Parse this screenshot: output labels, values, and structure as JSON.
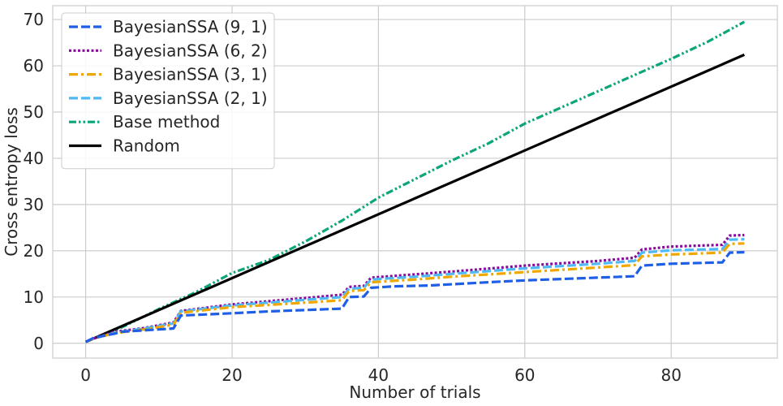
{
  "chart_data": {
    "type": "line",
    "xlabel": "Number of trials",
    "ylabel": "Cross entropy loss",
    "xlim": [
      -4.5,
      94.5
    ],
    "ylim": [
      -3.2,
      73
    ],
    "xticks": [
      0,
      20,
      40,
      60,
      80
    ],
    "yticks": [
      0,
      10,
      20,
      30,
      40,
      50,
      60,
      70
    ],
    "xtick_labels": [
      "0",
      "20",
      "40",
      "60",
      "80"
    ],
    "ytick_labels": [
      "0",
      "10",
      "20",
      "30",
      "40",
      "50",
      "60",
      "70"
    ],
    "grid": true,
    "legend_position": "upper-left",
    "series": [
      {
        "name": "BayesianSSA (9, 1)",
        "color": "#1f5fe6",
        "dash": "dashed",
        "points": [
          [
            0,
            0.3
          ],
          [
            1,
            1.1
          ],
          [
            3,
            1.8
          ],
          [
            4,
            2.1
          ],
          [
            5,
            2.5
          ],
          [
            8,
            2.8
          ],
          [
            10,
            3.0
          ],
          [
            12,
            3.2
          ],
          [
            13,
            6.0
          ],
          [
            20,
            6.5
          ],
          [
            25,
            6.9
          ],
          [
            30,
            7.2
          ],
          [
            35,
            7.5
          ],
          [
            36,
            10.0
          ],
          [
            38,
            10.1
          ],
          [
            39,
            12.0
          ],
          [
            42,
            12.3
          ],
          [
            47,
            12.5
          ],
          [
            55,
            13.2
          ],
          [
            60,
            13.6
          ],
          [
            65,
            13.9
          ],
          [
            70,
            14.2
          ],
          [
            75,
            14.5
          ],
          [
            76,
            16.8
          ],
          [
            80,
            17.2
          ],
          [
            87,
            17.5
          ],
          [
            88,
            19.6
          ],
          [
            90,
            19.7
          ]
        ]
      },
      {
        "name": "BayesianSSA (6, 2)",
        "color": "#8b0a9e",
        "dash": "dotted",
        "points": [
          [
            0,
            0.3
          ],
          [
            1,
            1.0
          ],
          [
            4,
            2.5
          ],
          [
            8,
            3.3
          ],
          [
            12,
            4.5
          ],
          [
            13,
            7.0
          ],
          [
            20,
            8.4
          ],
          [
            30,
            9.8
          ],
          [
            35,
            10.5
          ],
          [
            36,
            12.2
          ],
          [
            38,
            12.4
          ],
          [
            39,
            14.2
          ],
          [
            45,
            14.9
          ],
          [
            50,
            15.5
          ],
          [
            60,
            16.8
          ],
          [
            70,
            17.8
          ],
          [
            75,
            18.5
          ],
          [
            76,
            20.3
          ],
          [
            80,
            20.9
          ],
          [
            87,
            21.3
          ],
          [
            88,
            23.3
          ],
          [
            90,
            23.4
          ]
        ]
      },
      {
        "name": "BayesianSSA (3, 1)",
        "color": "#f0a800",
        "dash": "dashdot",
        "points": [
          [
            0,
            0.3
          ],
          [
            1,
            1.0
          ],
          [
            4,
            2.2
          ],
          [
            8,
            3.0
          ],
          [
            12,
            4.0
          ],
          [
            13,
            6.6
          ],
          [
            20,
            7.8
          ],
          [
            30,
            8.8
          ],
          [
            35,
            9.3
          ],
          [
            36,
            11.3
          ],
          [
            38,
            11.5
          ],
          [
            39,
            13.2
          ],
          [
            45,
            13.8
          ],
          [
            50,
            14.4
          ],
          [
            60,
            15.4
          ],
          [
            70,
            16.4
          ],
          [
            75,
            16.9
          ],
          [
            76,
            18.8
          ],
          [
            80,
            19.2
          ],
          [
            87,
            19.6
          ],
          [
            88,
            21.5
          ],
          [
            90,
            21.6
          ]
        ]
      },
      {
        "name": "BayesianSSA (2, 1)",
        "color": "#4fb9f5",
        "dash": "dashed",
        "points": [
          [
            0,
            0.3
          ],
          [
            1,
            1.0
          ],
          [
            4,
            2.3
          ],
          [
            8,
            3.2
          ],
          [
            12,
            4.3
          ],
          [
            13,
            6.9
          ],
          [
            20,
            8.2
          ],
          [
            30,
            9.4
          ],
          [
            35,
            10.0
          ],
          [
            36,
            11.8
          ],
          [
            38,
            12.0
          ],
          [
            39,
            13.8
          ],
          [
            45,
            14.4
          ],
          [
            50,
            15.0
          ],
          [
            60,
            16.2
          ],
          [
            70,
            17.2
          ],
          [
            75,
            17.8
          ],
          [
            76,
            19.6
          ],
          [
            80,
            20.1
          ],
          [
            87,
            20.4
          ],
          [
            88,
            22.4
          ],
          [
            90,
            22.5
          ]
        ]
      },
      {
        "name": "Base method",
        "color": "#0aa67a",
        "dash": "dashdotdot",
        "points": [
          [
            0,
            0.3
          ],
          [
            5,
            3.5
          ],
          [
            10,
            7.4
          ],
          [
            15,
            11.0
          ],
          [
            20,
            15.2
          ],
          [
            25,
            18.0
          ],
          [
            30,
            22.0
          ],
          [
            35,
            26.5
          ],
          [
            40,
            31.5
          ],
          [
            45,
            35.5
          ],
          [
            50,
            39.5
          ],
          [
            55,
            43.2
          ],
          [
            60,
            47.5
          ],
          [
            65,
            51.0
          ],
          [
            70,
            54.5
          ],
          [
            75,
            58.0
          ],
          [
            80,
            61.5
          ],
          [
            85,
            65.2
          ],
          [
            90,
            69.5
          ]
        ]
      },
      {
        "name": "Random",
        "color": "#000000",
        "dash": "solid",
        "points": [
          [
            0,
            0.3
          ],
          [
            90,
            62.4
          ]
        ]
      }
    ]
  }
}
